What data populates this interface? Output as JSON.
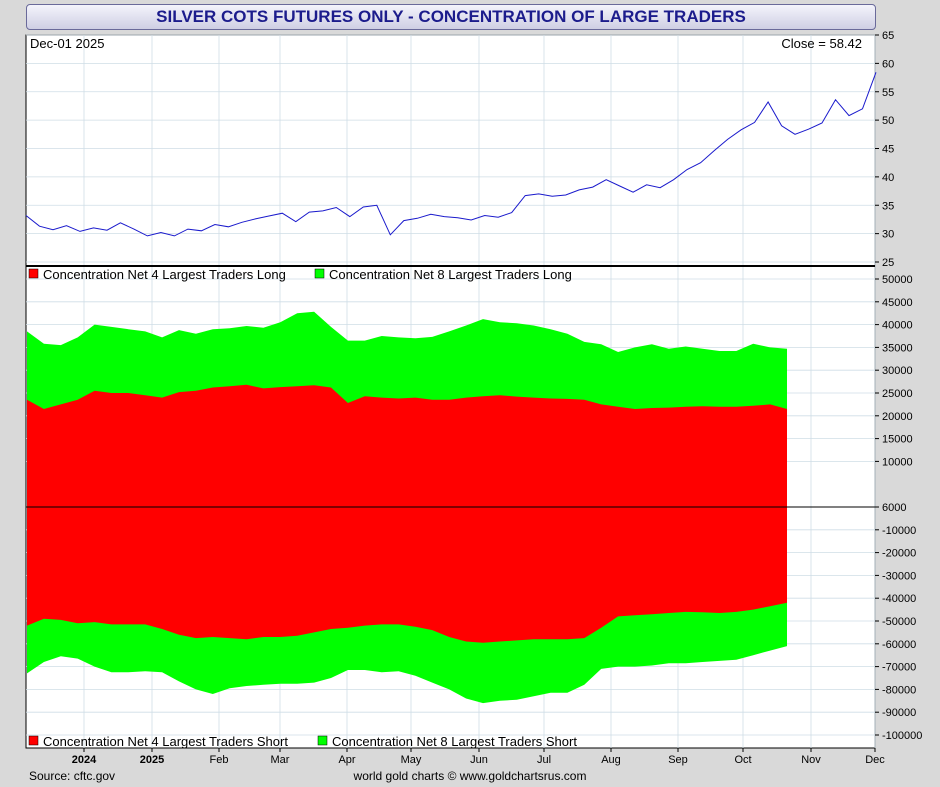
{
  "title": "SILVER COTS FUTURES ONLY - CONCENTRATION OF LARGE TRADERS",
  "date_label": "Dec-01  2025",
  "close_label": "Close = 58.42",
  "source": "Source: cftc.gov",
  "credit": "world gold charts © www.goldchartsrus.com",
  "colors": {
    "red": "#ff0000",
    "green": "#00ff00",
    "price_line": "#1a1acc",
    "title_text": "#1c1c8c"
  },
  "legend_top": [
    "Concentration Net 4 Largest Traders Long",
    "Concentration Net 8 Largest Traders Long"
  ],
  "legend_bottom": [
    "Concentration Net 4 Largest Traders Short",
    "Concentration Net 8 Largest Traders Short"
  ],
  "x_ticks": [
    "2024",
    "2025",
    "Feb",
    "Mar",
    "Apr",
    "May",
    "Jun",
    "Jul",
    "Aug",
    "Sep",
    "Oct",
    "Nov",
    "Dec"
  ],
  "chart_data": [
    {
      "type": "line",
      "title": "",
      "series": [
        {
          "name": "",
          "values": [
            33.2,
            31.3,
            30.7,
            31.4,
            30.4,
            31.0,
            30.6,
            31.9,
            30.8,
            29.6,
            30.2,
            29.6,
            30.8,
            30.5,
            31.6,
            31.2,
            32.0,
            32.6,
            33.1,
            33.6,
            32.1,
            33.8,
            34.0,
            34.6,
            33.0,
            34.7,
            35.0,
            29.8,
            32.3,
            32.7,
            33.4,
            33.0,
            32.8,
            32.4,
            33.2,
            32.9,
            33.7,
            36.7,
            37.0,
            36.6,
            36.8,
            37.7,
            38.2,
            39.5,
            38.4,
            37.3,
            38.6,
            38.1,
            39.5,
            41.3,
            42.5,
            44.6,
            46.6,
            48.3,
            49.6,
            53.2,
            49.0,
            47.5,
            48.4,
            49.5,
            53.6,
            50.8,
            52.0,
            58.42
          ]
        }
      ],
      "yticks": [
        25,
        30,
        35,
        40,
        45,
        50,
        55,
        60,
        65
      ],
      "ylim": [
        25,
        65
      ]
    },
    {
      "type": "area",
      "title": "",
      "x": [
        "2024",
        "",
        "",
        "",
        "",
        "",
        "2025",
        "",
        "",
        "Feb",
        "",
        "",
        "",
        "Mar",
        "",
        "",
        "",
        "Apr",
        "",
        "",
        "",
        "May",
        "",
        "",
        "",
        "",
        "Jun",
        "",
        "",
        "",
        "Jul",
        "",
        "",
        "",
        "Aug",
        "",
        "",
        "",
        "Sep",
        "",
        "",
        "",
        "Oct",
        "",
        "",
        ""
      ],
      "series": [
        {
          "name": "Concentration Net 4 Largest Traders Long",
          "values": [
            23500,
            21500,
            22500,
            23500,
            25500,
            25000,
            25000,
            24500,
            24000,
            25200,
            25500,
            26200,
            26500,
            26800,
            26000,
            26300,
            26500,
            26700,
            26200,
            22800,
            24300,
            24000,
            23800,
            24000,
            23500,
            23500,
            24000,
            24300,
            24500,
            24200,
            24000,
            23800,
            23700,
            23500,
            22500,
            22000,
            21500,
            21700,
            21800,
            22000,
            22100,
            22000,
            22000,
            22200,
            22500,
            21500
          ]
        },
        {
          "name": "Concentration Net 8 Largest Traders Long",
          "values": [
            38500,
            35800,
            35500,
            37200,
            40000,
            39500,
            39000,
            38500,
            37200,
            38800,
            38000,
            39000,
            39200,
            39700,
            39300,
            40500,
            42500,
            42800,
            39500,
            36500,
            36500,
            37500,
            37200,
            37000,
            37300,
            38500,
            39800,
            41200,
            40500,
            40300,
            39800,
            39000,
            38000,
            36200,
            35700,
            34000,
            35000,
            35700,
            34700,
            35200,
            34700,
            34200,
            34200,
            35800,
            35000,
            34700
          ]
        },
        {
          "name": "Concentration Net 4 Largest Traders Short",
          "values": [
            -52000,
            -49000,
            -49500,
            -51000,
            -50500,
            -51500,
            -51500,
            -51500,
            -53500,
            -56000,
            -57500,
            -57000,
            -57500,
            -58000,
            -57000,
            -57000,
            -56500,
            -55000,
            -53500,
            -53000,
            -52000,
            -51500,
            -51500,
            -52500,
            -54000,
            -57000,
            -59000,
            -59500,
            -59000,
            -58500,
            -58000,
            -58000,
            -58000,
            -57500,
            -53000,
            -48000,
            -47500,
            -47000,
            -46500,
            -46000,
            -46200,
            -46500,
            -46000,
            -45000,
            -43500,
            -42000
          ]
        },
        {
          "name": "Concentration Net 8 Largest Traders Short",
          "values": [
            -73000,
            -68000,
            -65500,
            -66500,
            -70000,
            -72500,
            -72500,
            -72000,
            -72500,
            -76500,
            -80000,
            -82000,
            -79500,
            -78500,
            -78000,
            -77500,
            -77500,
            -77000,
            -75000,
            -71500,
            -71500,
            -72500,
            -72000,
            -74000,
            -77000,
            -80000,
            -84000,
            -86000,
            -85000,
            -84500,
            -83000,
            -81500,
            -81500,
            -78000,
            -71000,
            -70000,
            -70000,
            -69500,
            -68500,
            -68500,
            -68000,
            -67500,
            -67000,
            -65000,
            -63000,
            -61000
          ]
        }
      ],
      "yticks_upper": [
        6000,
        10000,
        15000,
        20000,
        25000,
        30000,
        35000,
        40000,
        45000,
        50000
      ],
      "yticks_lower": [
        6000,
        -10000,
        -20000,
        -30000,
        -40000,
        -50000,
        -60000,
        -70000,
        -80000,
        -90000,
        -100000
      ],
      "ylim_upper": [
        0,
        52000
      ],
      "ylim_lower": [
        -104000,
        0
      ]
    }
  ]
}
